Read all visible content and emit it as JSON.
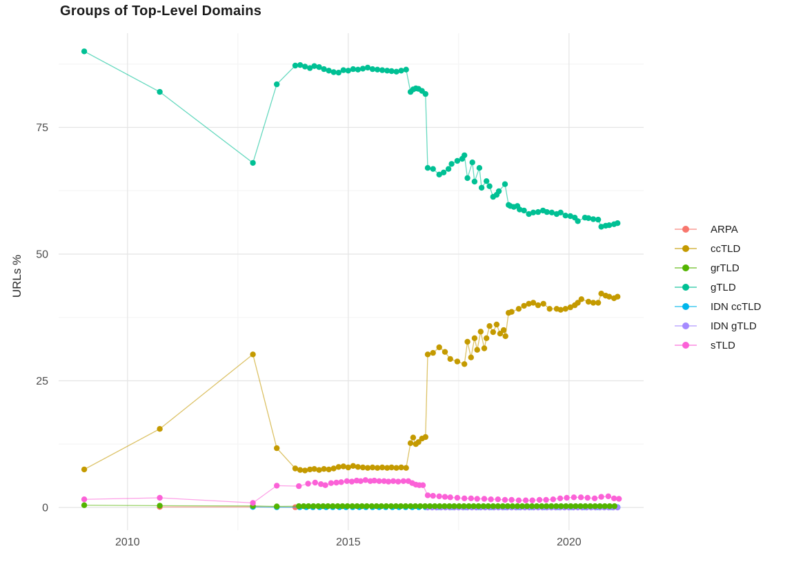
{
  "chart_data": {
    "type": "line",
    "title": "Groups of Top-Level Domains",
    "xlabel": "",
    "ylabel": "URLs %",
    "x_ticks": [
      2010,
      2015,
      2020
    ],
    "x_minor_ticks": [
      2012.5,
      2017.5
    ],
    "y_ticks": [
      0,
      25,
      50,
      75
    ],
    "y_minor_ticks": [
      12.5,
      37.5,
      62.5,
      87.5
    ],
    "xlim": [
      2008.44,
      2021.69
    ],
    "ylim": [
      -4.5,
      93.6
    ],
    "grid": true,
    "legend_position": "right",
    "colors": {
      "grid_major": "#e4e4e4",
      "grid_minor": "#f3f3f3",
      "tick_label": "#4d4d4d",
      "title": "#1a1a1a"
    },
    "z_order": [
      0,
      4,
      5,
      2,
      1,
      3,
      6
    ],
    "series": [
      {
        "name": "ARPA",
        "color": "#F8766D",
        "points": [
          [
            2010.73,
            0.1
          ],
          [
            2012.84,
            0.1
          ],
          [
            2013.38,
            0.08
          ],
          [
            2013.8,
            0.05
          ],
          [
            2014.2,
            0.05
          ]
        ]
      },
      {
        "name": "ccTLD",
        "color": "#C49A00",
        "points": [
          [
            2009.02,
            7.5
          ],
          [
            2010.73,
            15.5
          ],
          [
            2012.84,
            30.2
          ],
          [
            2013.38,
            11.7
          ],
          [
            2013.8,
            7.7
          ],
          [
            2013.91,
            7.4
          ],
          [
            2014.02,
            7.3
          ],
          [
            2014.13,
            7.5
          ],
          [
            2014.23,
            7.6
          ],
          [
            2014.34,
            7.4
          ],
          [
            2014.45,
            7.6
          ],
          [
            2014.56,
            7.5
          ],
          [
            2014.67,
            7.7
          ],
          [
            2014.78,
            8
          ],
          [
            2014.89,
            8.1
          ],
          [
            2015,
            7.9
          ],
          [
            2015.11,
            8.2
          ],
          [
            2015.22,
            8
          ],
          [
            2015.33,
            7.9
          ],
          [
            2015.44,
            7.8
          ],
          [
            2015.55,
            7.9
          ],
          [
            2015.66,
            7.8
          ],
          [
            2015.77,
            7.9
          ],
          [
            2015.88,
            7.8
          ],
          [
            2015.98,
            7.9
          ],
          [
            2016.09,
            7.8
          ],
          [
            2016.2,
            7.9
          ],
          [
            2016.31,
            7.8
          ],
          [
            2016.41,
            12.7
          ],
          [
            2016.47,
            13.8
          ],
          [
            2016.53,
            12.5
          ],
          [
            2016.59,
            12.9
          ],
          [
            2016.67,
            13.6
          ],
          [
            2016.75,
            13.9
          ],
          [
            2016.8,
            30.2
          ],
          [
            2016.92,
            30.5
          ],
          [
            2017.06,
            31.6
          ],
          [
            2017.19,
            30.7
          ],
          [
            2017.31,
            29.3
          ],
          [
            2017.47,
            28.8
          ],
          [
            2017.63,
            28.3
          ],
          [
            2017.7,
            32.7
          ],
          [
            2017.78,
            29.6
          ],
          [
            2017.86,
            33.4
          ],
          [
            2017.92,
            31.1
          ],
          [
            2018,
            34.7
          ],
          [
            2018.08,
            31.4
          ],
          [
            2018.13,
            33.4
          ],
          [
            2018.2,
            35.8
          ],
          [
            2018.28,
            34.6
          ],
          [
            2018.36,
            36.1
          ],
          [
            2018.44,
            34.3
          ],
          [
            2018.52,
            35
          ],
          [
            2018.56,
            33.8
          ],
          [
            2018.63,
            38.4
          ],
          [
            2018.7,
            38.6
          ],
          [
            2018.86,
            39.2
          ],
          [
            2018.98,
            39.8
          ],
          [
            2019.09,
            40.2
          ],
          [
            2019.19,
            40.4
          ],
          [
            2019.3,
            39.9
          ],
          [
            2019.42,
            40.2
          ],
          [
            2019.56,
            39.2
          ],
          [
            2019.72,
            39.2
          ],
          [
            2019.81,
            39
          ],
          [
            2019.92,
            39.2
          ],
          [
            2020.03,
            39.5
          ],
          [
            2020.13,
            39.9
          ],
          [
            2020.2,
            40.4
          ],
          [
            2020.28,
            41.1
          ],
          [
            2020.44,
            40.6
          ],
          [
            2020.55,
            40.4
          ],
          [
            2020.66,
            40.4
          ],
          [
            2020.73,
            42.2
          ],
          [
            2020.83,
            41.8
          ],
          [
            2020.91,
            41.6
          ],
          [
            2021.02,
            41.3
          ],
          [
            2021.1,
            41.6
          ]
        ]
      },
      {
        "name": "grTLD",
        "color": "#53B400",
        "points": [
          [
            2009.02,
            0.45
          ],
          [
            2010.73,
            0.35
          ],
          [
            2012.84,
            0.3
          ],
          [
            2013.38,
            0.2
          ]
        ],
        "runs": [
          {
            "from": 2013.88,
            "to": 2021.1,
            "step": 0.11,
            "value": 0.25
          }
        ]
      },
      {
        "name": "gTLD",
        "color": "#00C094",
        "points": [
          [
            2009.02,
            90
          ],
          [
            2010.73,
            82
          ],
          [
            2012.84,
            68
          ],
          [
            2013.38,
            83.5
          ],
          [
            2013.8,
            87.2
          ],
          [
            2013.91,
            87.3
          ],
          [
            2014.02,
            87
          ],
          [
            2014.13,
            86.7
          ],
          [
            2014.23,
            87.1
          ],
          [
            2014.34,
            86.9
          ],
          [
            2014.45,
            86.5
          ],
          [
            2014.56,
            86.2
          ],
          [
            2014.67,
            85.9
          ],
          [
            2014.78,
            85.8
          ],
          [
            2014.89,
            86.3
          ],
          [
            2015,
            86.2
          ],
          [
            2015.11,
            86.5
          ],
          [
            2015.22,
            86.4
          ],
          [
            2015.33,
            86.6
          ],
          [
            2015.44,
            86.8
          ],
          [
            2015.55,
            86.5
          ],
          [
            2015.66,
            86.4
          ],
          [
            2015.77,
            86.3
          ],
          [
            2015.88,
            86.2
          ],
          [
            2015.98,
            86.1
          ],
          [
            2016.09,
            86
          ],
          [
            2016.2,
            86.2
          ],
          [
            2016.31,
            86.4
          ],
          [
            2016.41,
            82
          ],
          [
            2016.47,
            82.5
          ],
          [
            2016.53,
            82.7
          ],
          [
            2016.59,
            82.6
          ],
          [
            2016.67,
            82.2
          ],
          [
            2016.75,
            81.6
          ],
          [
            2016.8,
            67
          ],
          [
            2016.92,
            66.8
          ],
          [
            2017.06,
            65.7
          ],
          [
            2017.16,
            66.1
          ],
          [
            2017.27,
            66.8
          ],
          [
            2017.34,
            67.8
          ],
          [
            2017.47,
            68.4
          ],
          [
            2017.58,
            68.8
          ],
          [
            2017.63,
            69.5
          ],
          [
            2017.7,
            65
          ],
          [
            2017.81,
            68.1
          ],
          [
            2017.86,
            64.3
          ],
          [
            2017.97,
            67
          ],
          [
            2018.02,
            63.1
          ],
          [
            2018.13,
            64.4
          ],
          [
            2018.2,
            63.4
          ],
          [
            2018.28,
            61.3
          ],
          [
            2018.36,
            61.7
          ],
          [
            2018.41,
            62.4
          ],
          [
            2018.55,
            63.8
          ],
          [
            2018.63,
            59.7
          ],
          [
            2018.67,
            59.5
          ],
          [
            2018.75,
            59.3
          ],
          [
            2018.83,
            59.5
          ],
          [
            2018.88,
            58.8
          ],
          [
            2018.98,
            58.6
          ],
          [
            2019.09,
            57.9
          ],
          [
            2019.19,
            58.2
          ],
          [
            2019.3,
            58.3
          ],
          [
            2019.41,
            58.6
          ],
          [
            2019.5,
            58.3
          ],
          [
            2019.61,
            58.2
          ],
          [
            2019.72,
            57.9
          ],
          [
            2019.81,
            58.2
          ],
          [
            2019.92,
            57.6
          ],
          [
            2020.03,
            57.5
          ],
          [
            2020.13,
            57.2
          ],
          [
            2020.2,
            56.5
          ],
          [
            2020.36,
            57.2
          ],
          [
            2020.44,
            57.1
          ],
          [
            2020.55,
            56.9
          ],
          [
            2020.66,
            56.8
          ],
          [
            2020.73,
            55.4
          ],
          [
            2020.83,
            55.6
          ],
          [
            2020.91,
            55.7
          ],
          [
            2021.02,
            55.9
          ],
          [
            2021.1,
            56.1
          ]
        ]
      },
      {
        "name": "IDN ccTLD",
        "color": "#00B6EB",
        "points": [
          [
            2012.84,
            0.1
          ],
          [
            2013.38,
            0.05
          ]
        ],
        "runs": [
          {
            "from": 2013.9,
            "to": 2021.1,
            "step": 0.15,
            "value": 0.05
          }
        ]
      },
      {
        "name": "IDN gTLD",
        "color": "#A58AFF",
        "points": [],
        "runs": [
          {
            "from": 2016.8,
            "to": 2021.1,
            "step": 0.1,
            "value": 0
          }
        ]
      },
      {
        "name": "sTLD",
        "color": "#FB61D7",
        "points": [
          [
            2009.02,
            1.6
          ],
          [
            2010.73,
            1.9
          ],
          [
            2012.84,
            0.9
          ],
          [
            2013.38,
            4.3
          ],
          [
            2013.88,
            4.2
          ],
          [
            2014.09,
            4.7
          ],
          [
            2014.25,
            4.9
          ],
          [
            2014.38,
            4.6
          ],
          [
            2014.48,
            4.4
          ],
          [
            2014.61,
            4.8
          ],
          [
            2014.73,
            4.9
          ],
          [
            2014.84,
            5
          ],
          [
            2014.97,
            5.2
          ],
          [
            2015.08,
            5.1
          ],
          [
            2015.19,
            5.3
          ],
          [
            2015.28,
            5.2
          ],
          [
            2015.39,
            5.4
          ],
          [
            2015.5,
            5.2
          ],
          [
            2015.59,
            5.3
          ],
          [
            2015.7,
            5.2
          ],
          [
            2015.81,
            5.2
          ],
          [
            2015.91,
            5.1
          ],
          [
            2016.02,
            5.2
          ],
          [
            2016.13,
            5.1
          ],
          [
            2016.25,
            5.2
          ],
          [
            2016.36,
            5.2
          ],
          [
            2016.45,
            4.8
          ],
          [
            2016.53,
            4.5
          ],
          [
            2016.61,
            4.4
          ],
          [
            2016.69,
            4.4
          ],
          [
            2016.8,
            2.4
          ],
          [
            2016.92,
            2.3
          ],
          [
            2017.06,
            2.2
          ],
          [
            2017.19,
            2.1
          ],
          [
            2017.31,
            2
          ],
          [
            2017.47,
            1.9
          ],
          [
            2017.63,
            1.8
          ],
          [
            2017.78,
            1.8
          ],
          [
            2017.92,
            1.7
          ],
          [
            2018.08,
            1.7
          ],
          [
            2018.23,
            1.6
          ],
          [
            2018.39,
            1.6
          ],
          [
            2018.55,
            1.5
          ],
          [
            2018.7,
            1.5
          ],
          [
            2018.86,
            1.4
          ],
          [
            2019.02,
            1.4
          ],
          [
            2019.17,
            1.4
          ],
          [
            2019.33,
            1.5
          ],
          [
            2019.48,
            1.5
          ],
          [
            2019.64,
            1.6
          ],
          [
            2019.8,
            1.8
          ],
          [
            2019.95,
            1.9
          ],
          [
            2020.11,
            2
          ],
          [
            2020.27,
            2
          ],
          [
            2020.42,
            1.9
          ],
          [
            2020.58,
            1.8
          ],
          [
            2020.73,
            2.1
          ],
          [
            2020.89,
            2.2
          ],
          [
            2021.02,
            1.8
          ],
          [
            2021.13,
            1.7
          ]
        ]
      }
    ]
  }
}
